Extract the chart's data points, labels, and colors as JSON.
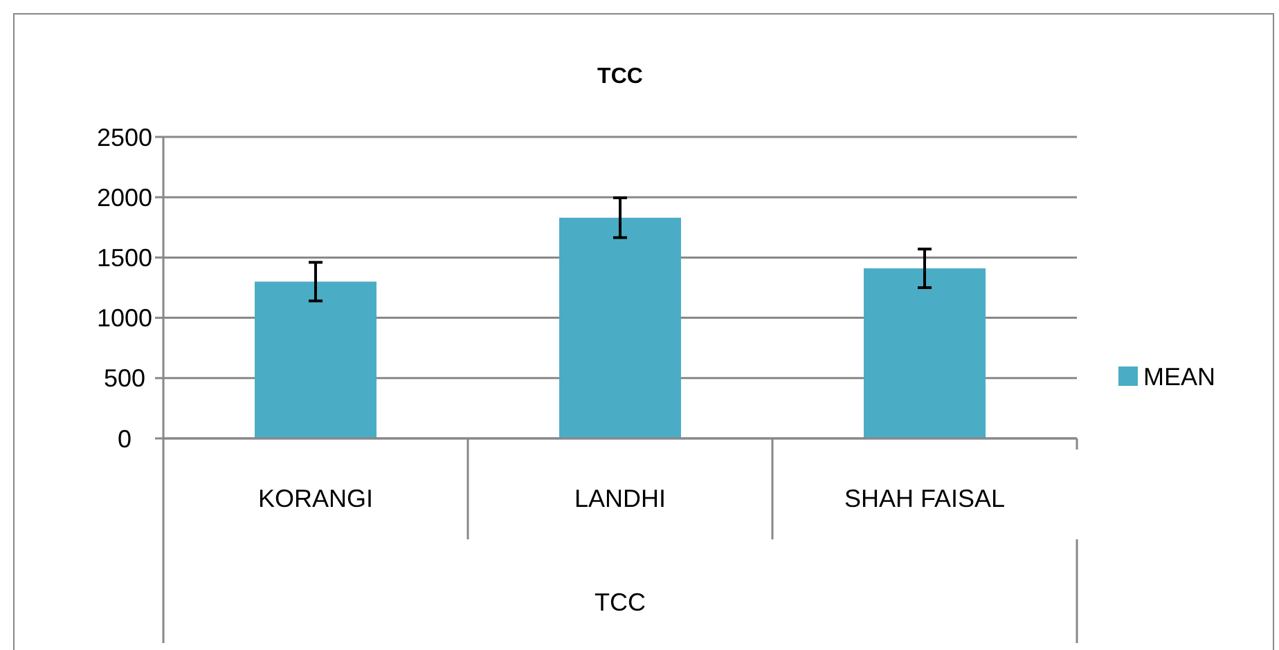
{
  "chart_data": {
    "type": "bar",
    "title": "TCC",
    "xlabel": "TCC",
    "categories": [
      "KORANGI",
      "LANDHI",
      "SHAH FAISAL"
    ],
    "series": [
      {
        "name": "MEAN",
        "color": "#4bacc6",
        "values": [
          1300,
          1830,
          1410
        ],
        "errors": [
          160,
          165,
          160
        ]
      }
    ],
    "ylim": [
      0,
      2500
    ],
    "yticks": [
      0,
      500,
      1000,
      1500,
      2000,
      2500
    ],
    "grid": "y",
    "legend": "right"
  }
}
